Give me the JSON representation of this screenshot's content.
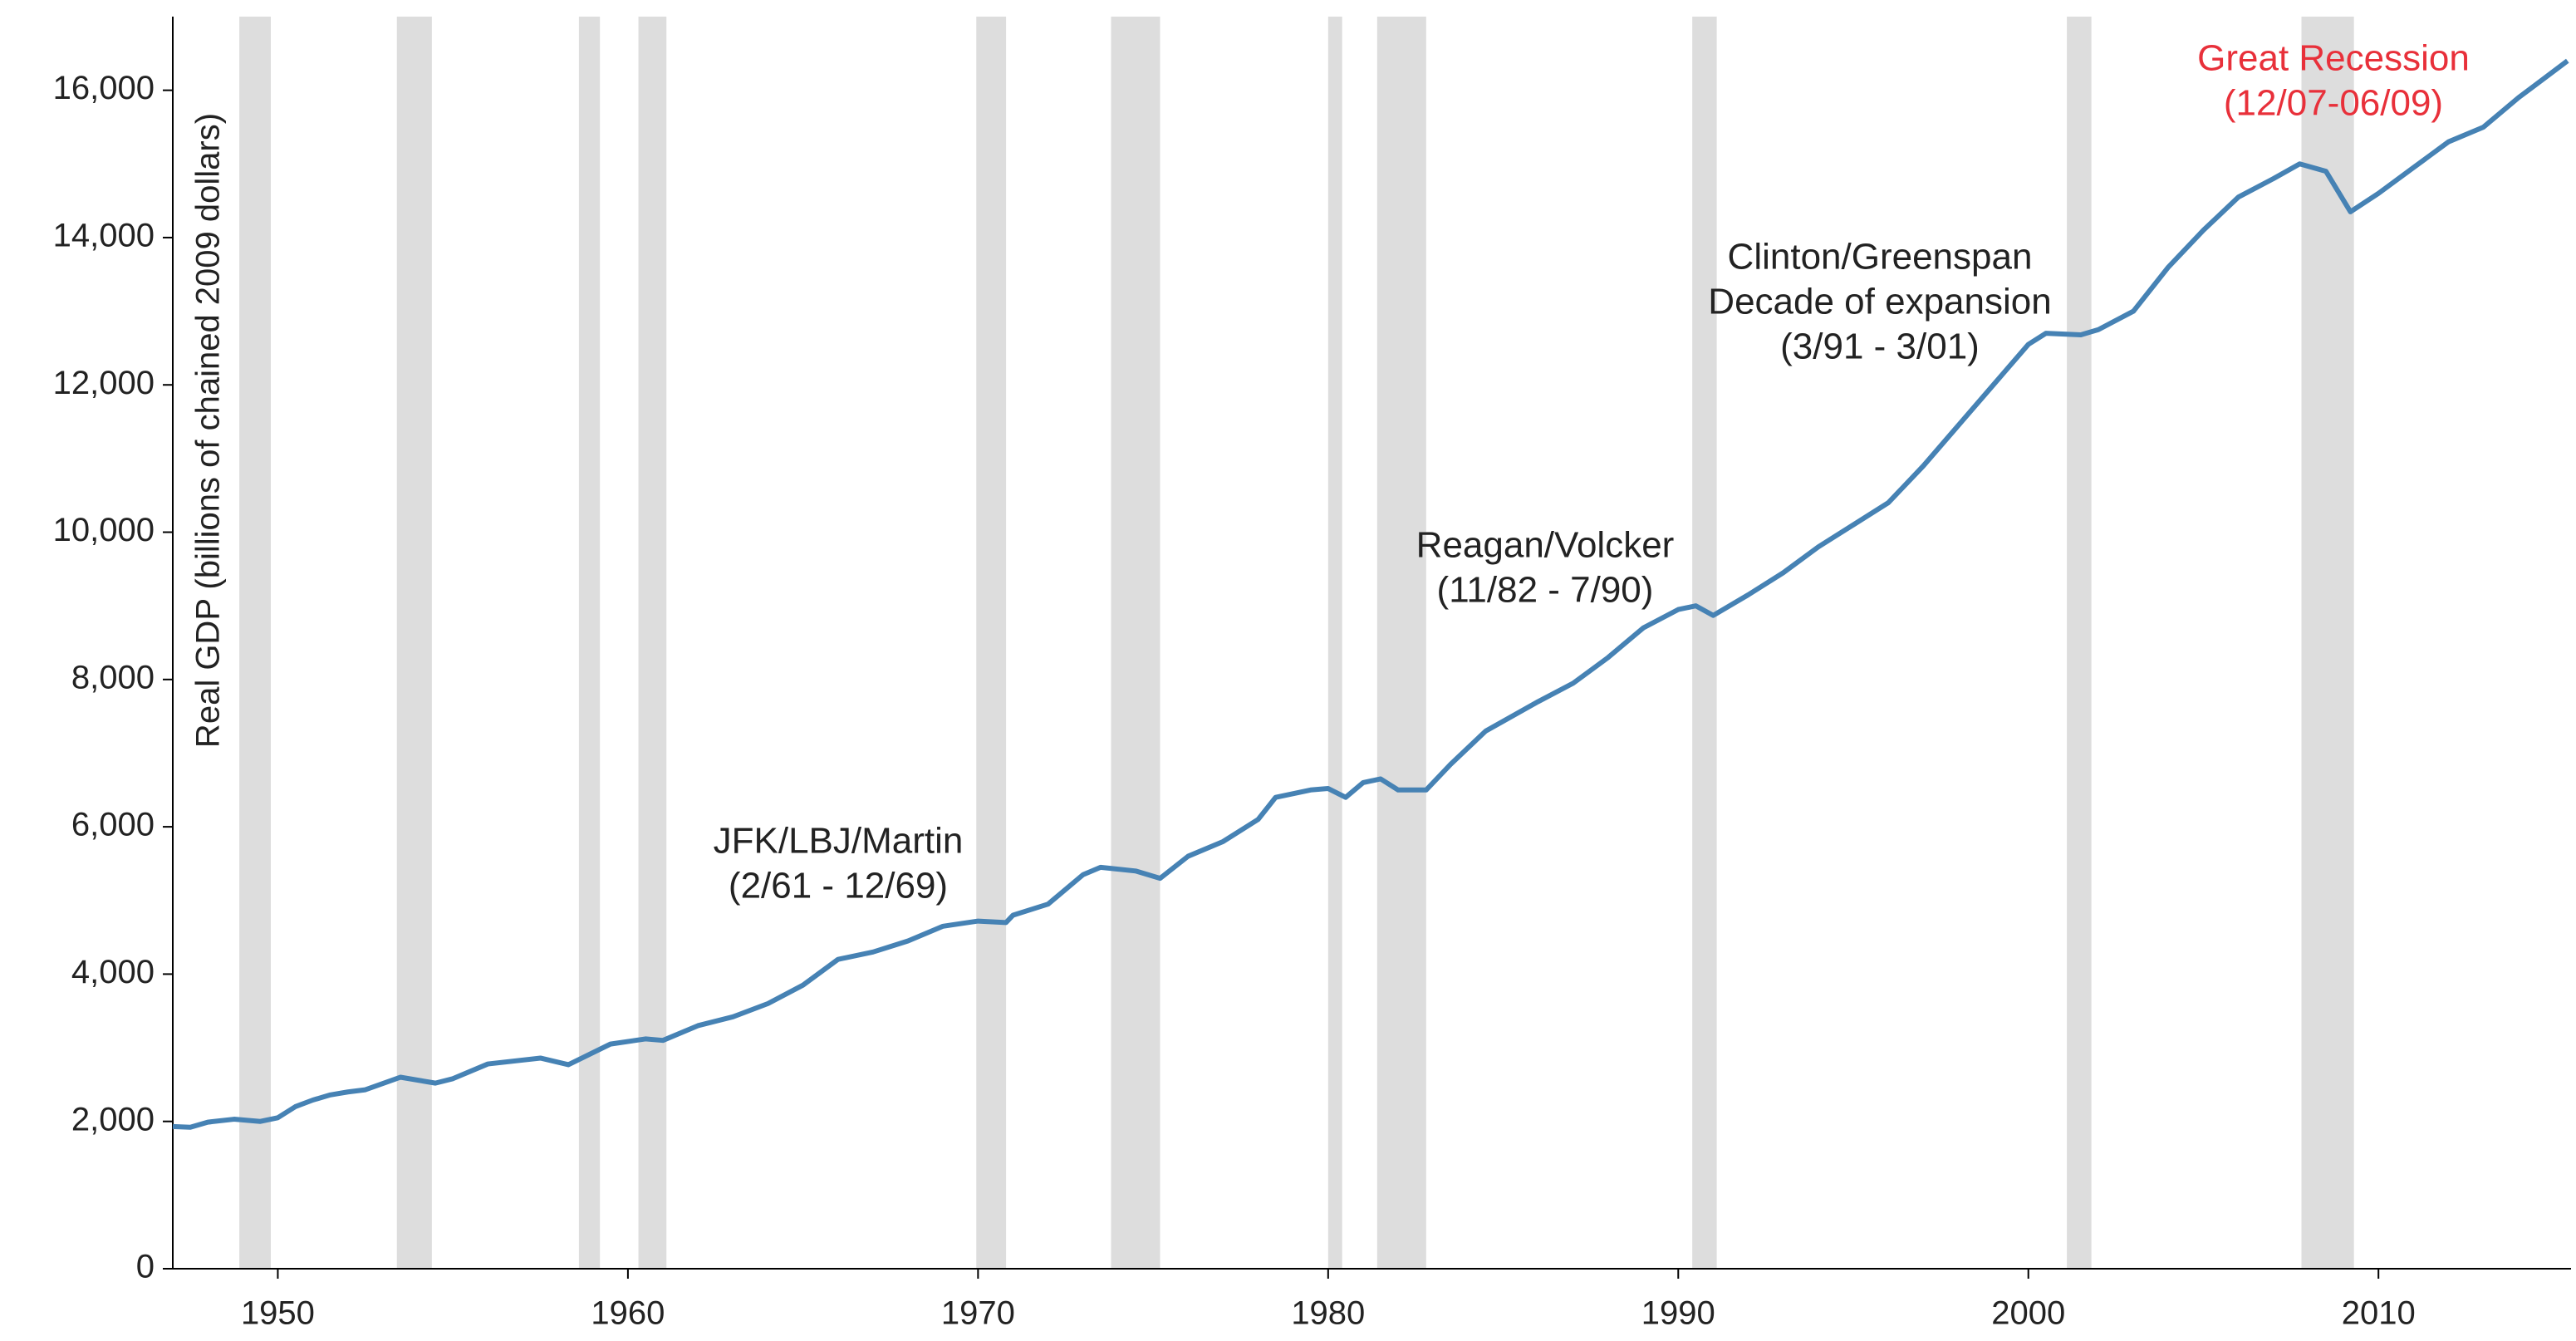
{
  "chart_data": {
    "type": "line",
    "y_label": "Real GDP (billions of chained 2009 dollars)",
    "xlim": [
      1947,
      2015.5
    ],
    "ylim": [
      0,
      17000
    ],
    "xticks": [
      1950,
      1960,
      1970,
      1980,
      1990,
      2000,
      2010
    ],
    "yticks": [
      0,
      {
        "value": 2000,
        "label": "2,000"
      },
      {
        "value": 4000,
        "label": "4,000"
      },
      {
        "value": 6000,
        "label": "6,000"
      },
      {
        "value": 8000,
        "label": "8,000"
      },
      {
        "value": 10000,
        "label": "10,000"
      },
      {
        "value": 12000,
        "label": "12,000"
      },
      {
        "value": 14000,
        "label": "14,000"
      },
      {
        "value": 16000,
        "label": "16,000"
      }
    ],
    "shade_color": "#dddddd",
    "shaded": [
      [
        1948.9,
        1949.8
      ],
      [
        1953.4,
        1954.4
      ],
      [
        1958.6,
        1959.2
      ],
      [
        1960.3,
        1961.1
      ],
      [
        1969.95,
        1970.8
      ],
      [
        1973.8,
        1975.2
      ],
      [
        1980.0,
        1980.4
      ],
      [
        1981.4,
        1982.8
      ],
      [
        1990.4,
        1991.1
      ],
      [
        2001.1,
        2001.8
      ],
      [
        2007.8,
        2009.3
      ]
    ],
    "annotations": [
      {
        "lines": [
          "JFK/LBJ/Martin",
          "(2/61 - 12/69)"
        ],
        "color": "#222222"
      },
      {
        "lines": [
          "Reagan/Volcker",
          "(11/82 - 7/90)"
        ],
        "color": "#222222"
      },
      {
        "lines": [
          "Clinton/Greenspan",
          "Decade of expansion",
          "(3/91 - 3/01)"
        ],
        "color": "#222222"
      },
      {
        "lines": [
          "Great Recession",
          "(12/07-06/09)"
        ],
        "color": "#e8303a"
      }
    ],
    "series": [
      {
        "name": "Real GDP",
        "color": "#4682b4",
        "x": [
          1947.0,
          1947.5,
          1948.0,
          1948.75,
          1949.5,
          1950.0,
          1950.5,
          1951.0,
          1951.5,
          1952.0,
          1952.5,
          1953.5,
          1954.5,
          1955.0,
          1956.0,
          1957.5,
          1958.3,
          1959.5,
          1960.5,
          1961.0,
          1962.0,
          1963.0,
          1964.0,
          1965.0,
          1966.0,
          1967.0,
          1968.0,
          1969.0,
          1970.0,
          1970.8,
          1971.0,
          1972.0,
          1973.0,
          1973.5,
          1974.5,
          1975.2,
          1976.0,
          1977.0,
          1978.0,
          1978.5,
          1979.5,
          1980.0,
          1980.5,
          1981.0,
          1981.5,
          1982.0,
          1982.8,
          1983.5,
          1984.5,
          1986.0,
          1987.0,
          1988.0,
          1989.0,
          1990.0,
          1990.5,
          1991.0,
          1992.0,
          1993.0,
          1994.0,
          1995.0,
          1996.0,
          1997.0,
          1998.0,
          1999.0,
          2000.0,
          2000.5,
          2001.5,
          2002.0,
          2003.0,
          2004.0,
          2005.0,
          2006.0,
          2007.0,
          2007.75,
          2008.5,
          2009.2,
          2010.0,
          2011.0,
          2012.0,
          2013.0,
          2014.0,
          2015.4
        ],
        "values": [
          1930,
          1920,
          1990,
          2030,
          2000,
          2050,
          2200,
          2290,
          2360,
          2400,
          2430,
          2600,
          2520,
          2580,
          2780,
          2860,
          2770,
          3050,
          3120,
          3100,
          3300,
          3420,
          3600,
          3850,
          4200,
          4300,
          4450,
          4650,
          4720,
          4700,
          4800,
          4950,
          5350,
          5450,
          5400,
          5300,
          5600,
          5800,
          6100,
          6400,
          6500,
          6520,
          6400,
          6600,
          6650,
          6500,
          6500,
          6850,
          7300,
          7700,
          7950,
          8300,
          8700,
          8950,
          9000,
          8870,
          9150,
          9450,
          9800,
          10100,
          10400,
          10900,
          11450,
          12000,
          12550,
          12700,
          12680,
          12750,
          13000,
          13600,
          14100,
          14550,
          14800,
          15000,
          14900,
          14350,
          14600,
          14950,
          15300,
          15500,
          15900,
          16400
        ]
      }
    ]
  }
}
